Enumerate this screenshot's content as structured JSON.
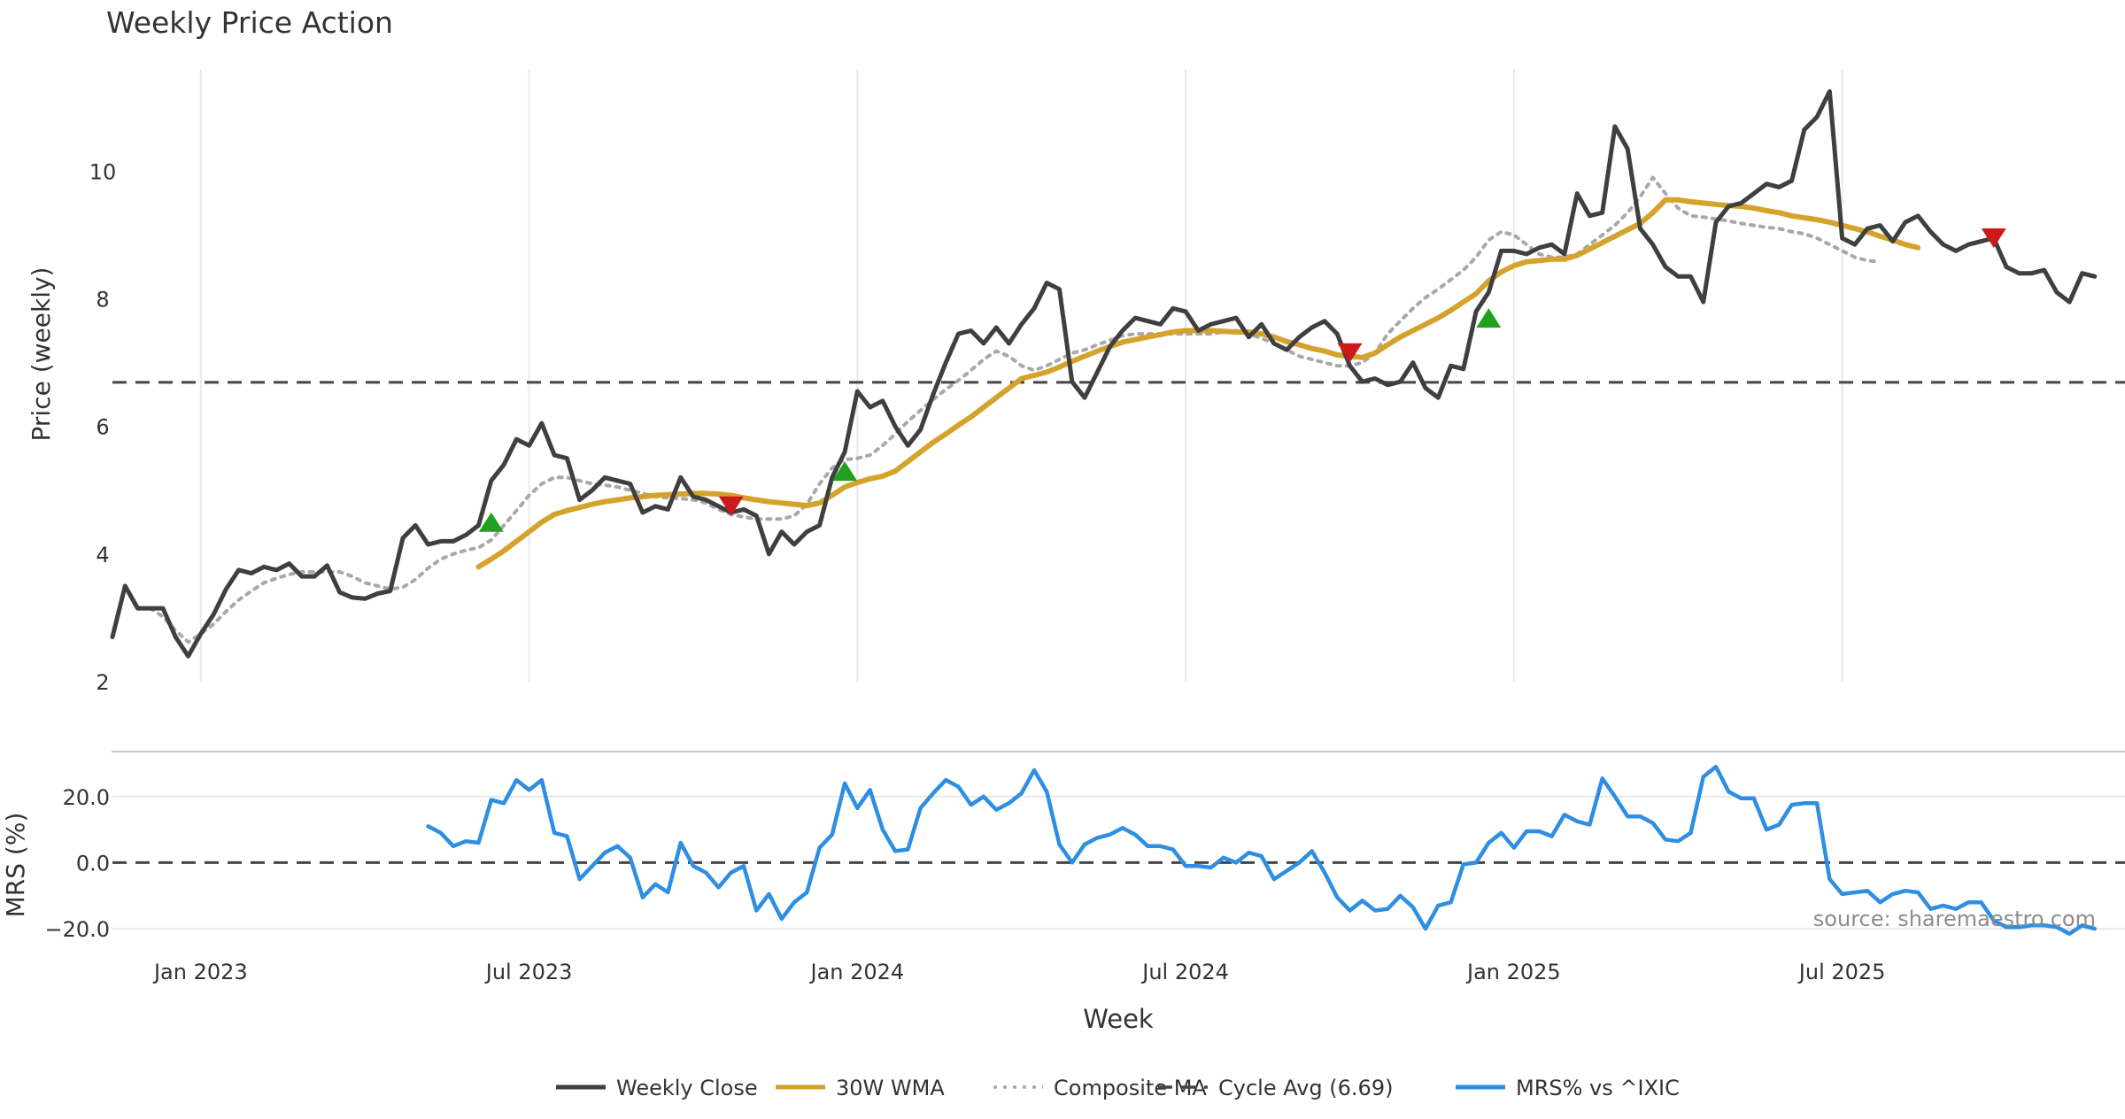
{
  "title": "Weekly Price Action",
  "source": "source: sharemaestro.com",
  "xlabel": "Week",
  "colors": {
    "close": "#3f3f3f",
    "wma": "#d4a32c",
    "composite": "#a8a8a8",
    "cycle": "#444444",
    "mrs": "#2e8fe2",
    "buy": "#1fa11f",
    "sell": "#cc1a1a",
    "grid": "#e9e9e9"
  },
  "legend": [
    {
      "label": "Weekly Close",
      "key": "close",
      "style": "solid"
    },
    {
      "label": "30W WMA",
      "key": "wma",
      "style": "solid"
    },
    {
      "label": "Composite MA",
      "key": "composite",
      "style": "dotted"
    },
    {
      "label": "Cycle Avg (6.69)",
      "key": "cycle",
      "style": "dashed"
    },
    {
      "label": "MRS% vs ^IXIC",
      "key": "mrs",
      "style": "solid"
    }
  ],
  "chart_data": [
    {
      "type": "line",
      "title": "Weekly Price Action",
      "ylabel": "Price (weekly)",
      "ylim": [
        2,
        11.6
      ],
      "yticks": [
        2,
        4,
        6,
        8,
        10
      ],
      "grid": true,
      "x_ticks": [
        "Jan 2023",
        "Jul 2023",
        "Jan 2024",
        "Jul 2024",
        "Jan 2025",
        "Jul 2025"
      ],
      "x_tick_weeks": [
        7,
        33,
        59,
        85,
        111,
        137
      ],
      "cycle_avg": 6.69,
      "series": [
        {
          "name": "Weekly Close",
          "start_week": 0,
          "values": [
            2.7,
            3.5,
            3.15,
            3.15,
            3.15,
            2.7,
            2.4,
            2.75,
            3.05,
            3.45,
            3.75,
            3.7,
            3.8,
            3.75,
            3.85,
            3.65,
            3.65,
            3.82,
            3.4,
            3.32,
            3.3,
            3.38,
            3.42,
            4.25,
            4.45,
            4.15,
            4.2,
            4.2,
            4.3,
            4.45,
            5.15,
            5.4,
            5.8,
            5.7,
            6.05,
            5.55,
            5.5,
            4.85,
            5.0,
            5.2,
            5.15,
            5.1,
            4.65,
            4.75,
            4.7,
            5.2,
            4.9,
            4.85,
            4.75,
            4.65,
            4.7,
            4.6,
            4.0,
            4.35,
            4.15,
            4.35,
            4.45,
            5.2,
            5.6,
            6.55,
            6.3,
            6.4,
            6.0,
            5.7,
            5.95,
            6.5,
            7.0,
            7.45,
            7.5,
            7.3,
            7.55,
            7.3,
            7.6,
            7.85,
            8.25,
            8.15,
            6.7,
            6.45,
            6.85,
            7.25,
            7.5,
            7.7,
            7.65,
            7.6,
            7.85,
            7.8,
            7.5,
            7.6,
            7.65,
            7.7,
            7.4,
            7.6,
            7.3,
            7.2,
            7.4,
            7.55,
            7.65,
            7.45,
            6.95,
            6.7,
            6.75,
            6.65,
            6.7,
            7.0,
            6.6,
            6.45,
            6.95,
            6.9,
            7.8,
            8.1,
            8.75,
            8.75,
            8.7,
            8.8,
            8.85,
            8.7,
            9.65,
            9.3,
            9.35,
            10.7,
            10.35,
            9.1,
            8.85,
            8.5,
            8.35,
            8.35,
            7.95,
            9.2,
            9.45,
            9.5,
            9.65,
            9.8,
            9.75,
            9.85,
            10.65,
            10.85,
            11.25,
            8.95,
            8.85,
            9.1,
            9.15,
            8.9,
            9.2,
            9.3,
            9.05,
            8.85,
            8.75,
            8.85,
            8.9,
            8.95,
            8.5,
            8.4,
            8.4,
            8.45,
            8.1,
            7.95,
            8.4,
            8.35
          ]
        },
        {
          "name": "30W WMA",
          "start_week": 29,
          "values": [
            3.8,
            3.92,
            4.05,
            4.2,
            4.35,
            4.5,
            4.62,
            4.68,
            4.73,
            4.78,
            4.82,
            4.85,
            4.88,
            4.9,
            4.92,
            4.93,
            4.94,
            4.95,
            4.95,
            4.94,
            4.92,
            4.88,
            4.85,
            4.82,
            4.8,
            4.78,
            4.76,
            4.8,
            4.92,
            5.05,
            5.12,
            5.18,
            5.22,
            5.3,
            5.45,
            5.6,
            5.75,
            5.88,
            6.02,
            6.15,
            6.3,
            6.45,
            6.6,
            6.75,
            6.8,
            6.85,
            6.93,
            7.02,
            7.1,
            7.18,
            7.25,
            7.32,
            7.36,
            7.4,
            7.44,
            7.48,
            7.5,
            7.5,
            7.5,
            7.49,
            7.48,
            7.48,
            7.45,
            7.4,
            7.33,
            7.28,
            7.22,
            7.18,
            7.12,
            7.1,
            7.08,
            7.15,
            7.28,
            7.4,
            7.5,
            7.6,
            7.7,
            7.82,
            7.95,
            8.08,
            8.28,
            8.42,
            8.52,
            8.58,
            8.6,
            8.62,
            8.62,
            8.68,
            8.78,
            8.88,
            8.98,
            9.08,
            9.18,
            9.35,
            9.55,
            9.55,
            9.52,
            9.5,
            9.48,
            9.46,
            9.45,
            9.42,
            9.38,
            9.35,
            9.3,
            9.27,
            9.24,
            9.2,
            9.15,
            9.1,
            9.05,
            8.98,
            8.92,
            8.85,
            8.8
          ]
        },
        {
          "name": "Composite MA",
          "start_week": 3,
          "values": [
            3.15,
            3.02,
            2.8,
            2.62,
            2.75,
            2.9,
            3.1,
            3.28,
            3.42,
            3.55,
            3.62,
            3.68,
            3.72,
            3.72,
            3.72,
            3.72,
            3.65,
            3.55,
            3.5,
            3.45,
            3.48,
            3.6,
            3.78,
            3.92,
            4.0,
            4.06,
            4.1,
            4.22,
            4.45,
            4.68,
            4.92,
            5.1,
            5.2,
            5.2,
            5.15,
            5.1,
            5.08,
            5.05,
            5.0,
            4.95,
            4.9,
            4.88,
            4.87,
            4.85,
            4.8,
            4.7,
            4.62,
            4.58,
            4.55,
            4.55,
            4.55,
            4.6,
            4.78,
            5.1,
            5.35,
            5.48,
            5.5,
            5.55,
            5.7,
            5.88,
            6.08,
            6.25,
            6.42,
            6.58,
            6.72,
            6.88,
            7.05,
            7.18,
            7.1,
            6.95,
            6.88,
            6.95,
            7.05,
            7.15,
            7.2,
            7.28,
            7.35,
            7.42,
            7.45,
            7.45,
            7.45,
            7.45,
            7.45,
            7.45,
            7.45,
            7.48,
            7.5,
            7.45,
            7.38,
            7.3,
            7.2,
            7.1,
            7.05,
            7.0,
            6.95,
            6.95,
            7.0,
            7.15,
            7.45,
            7.65,
            7.85,
            8.02,
            8.15,
            8.3,
            8.45,
            8.65,
            8.92,
            9.05,
            9.0,
            8.85,
            8.7,
            8.65,
            8.65,
            8.7,
            8.85,
            9.0,
            9.15,
            9.35,
            9.6,
            9.9,
            9.65,
            9.42,
            9.3,
            9.28,
            9.25,
            9.22,
            9.18,
            9.15,
            9.12,
            9.1,
            9.05,
            9.02,
            8.95,
            8.85,
            8.75,
            8.65,
            8.6,
            8.58
          ]
        }
      ],
      "signals": [
        {
          "type": "buy",
          "week": 30,
          "value": 4.5
        },
        {
          "type": "sell",
          "week": 49,
          "value": 4.75
        },
        {
          "type": "buy",
          "week": 58,
          "value": 5.3
        },
        {
          "type": "sell",
          "week": 98,
          "value": 7.15
        },
        {
          "type": "buy",
          "week": 109,
          "value": 7.7
        },
        {
          "type": "sell",
          "week": 149,
          "value": 8.95
        }
      ]
    },
    {
      "type": "line",
      "ylabel": "MRS (%)",
      "ylim": [
        -24,
        32
      ],
      "yticks": [
        20.0,
        0.0,
        -20.0
      ],
      "ytick_labels": [
        "20.0",
        "0.0",
        "−20.0"
      ],
      "zero_line": 0,
      "series": [
        {
          "name": "MRS% vs ^IXIC",
          "start_week": 25,
          "values": [
            11,
            9,
            5,
            6.5,
            6,
            19,
            18,
            25,
            22,
            25,
            9,
            8,
            -5,
            -1,
            3,
            5,
            1.5,
            -10.5,
            -6.5,
            -9,
            6,
            -1,
            -3,
            -7.5,
            -3,
            -1,
            -14.5,
            -9.5,
            -17,
            -12,
            -9,
            4.5,
            8.5,
            24,
            16.5,
            22,
            10,
            3.5,
            4,
            16.5,
            21,
            25,
            23,
            17.5,
            20,
            16,
            18,
            21,
            28,
            21.5,
            5.5,
            0,
            5.5,
            7.5,
            8.5,
            10.5,
            8.5,
            5,
            5,
            4,
            -1,
            -1,
            -1.5,
            1.5,
            0,
            3,
            2,
            -5,
            -2.5,
            0,
            3.5,
            -3,
            -10.5,
            -14.5,
            -11.5,
            -14.5,
            -14,
            -10,
            -13.5,
            -20,
            -13,
            -12,
            -0.5,
            0,
            6,
            9,
            4.5,
            9.5,
            9.5,
            8,
            14.5,
            12.5,
            11.5,
            25.5,
            20,
            14,
            14,
            12,
            7,
            6.5,
            9,
            26,
            29,
            21.5,
            19.5,
            19.5,
            10,
            11.5,
            17.5,
            18,
            18,
            -5,
            -9.5,
            -9,
            -8.5,
            -12,
            -9.5,
            -8.5,
            -9,
            -14,
            -13,
            -14,
            -12,
            -12,
            -17.5,
            -19.5,
            -19.5,
            -19,
            -19,
            -19.5,
            -21.5,
            -19,
            -20
          ]
        }
      ]
    }
  ]
}
